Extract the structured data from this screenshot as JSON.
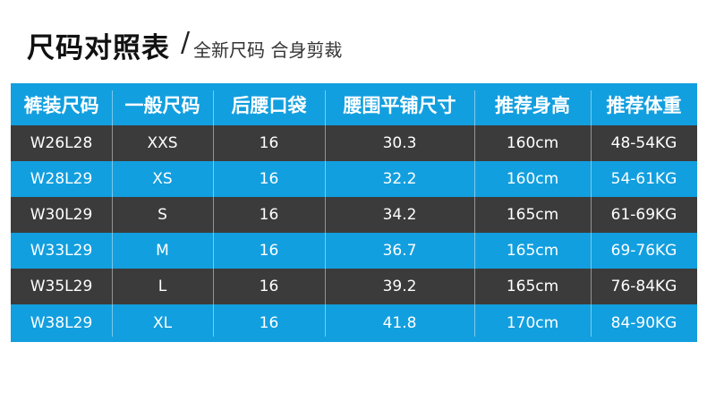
{
  "header": {
    "title": "尺码对照表",
    "separator": "/",
    "subtitle": "全新尺码 合身剪裁"
  },
  "table": {
    "columns": [
      "裤装尺码",
      "一般尺码",
      "后腰口袋",
      "腰围平铺尺寸",
      "推荐身高",
      "推荐体重"
    ],
    "rows": [
      [
        "W26L28",
        "XXS",
        "16",
        "30.3",
        "160cm",
        "48-54KG"
      ],
      [
        "W28L29",
        "XS",
        "16",
        "32.2",
        "160cm",
        "54-61KG"
      ],
      [
        "W30L29",
        "S",
        "16",
        "34.2",
        "165cm",
        "61-69KG"
      ],
      [
        "W33L29",
        "M",
        "16",
        "36.7",
        "165cm",
        "69-76KG"
      ],
      [
        "W35L29",
        "L",
        "16",
        "39.2",
        "165cm",
        "76-84KG"
      ],
      [
        "W38L29",
        "XL",
        "16",
        "41.8",
        "170cm",
        "84-90KG"
      ]
    ]
  }
}
